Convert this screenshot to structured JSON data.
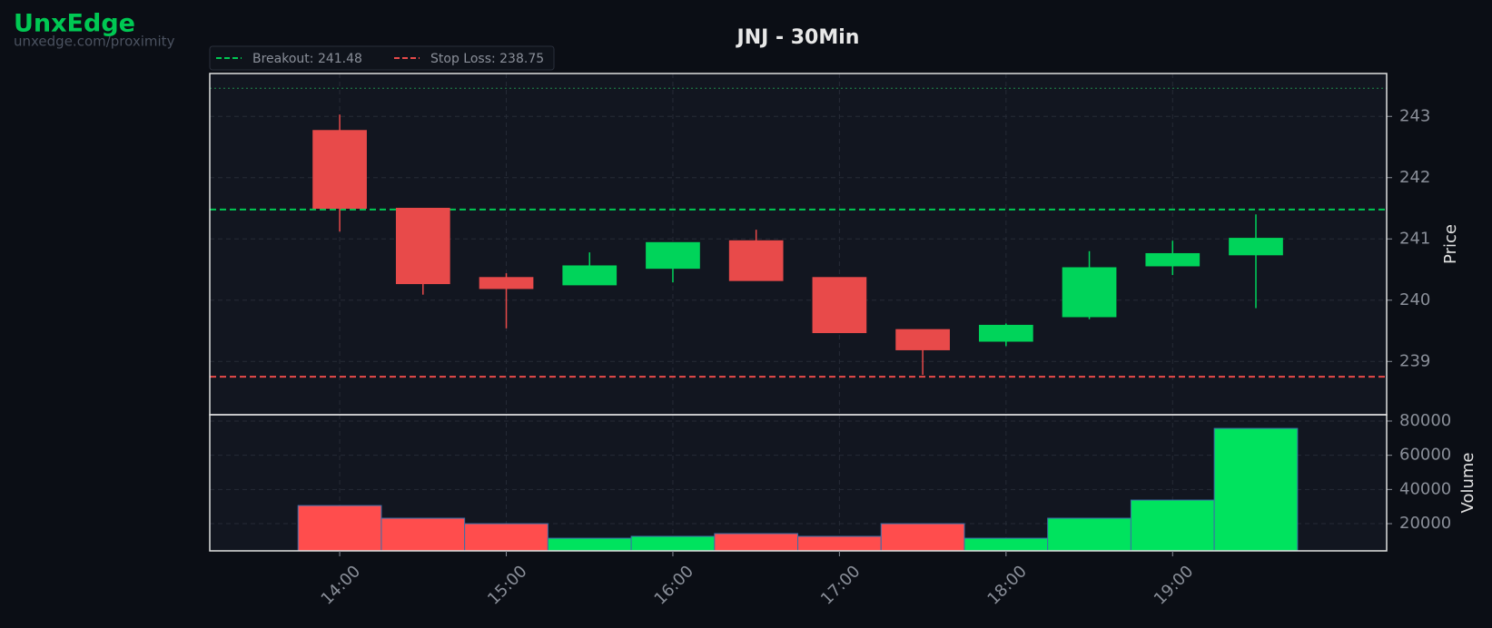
{
  "brand": {
    "name": "UnxEdge",
    "url": "unxedge.com/proximity"
  },
  "chart_data": {
    "type": "candlestick",
    "title": "JNJ - 30Min",
    "categories": [
      "14:00",
      null,
      "15:00",
      null,
      "16:00",
      null,
      "17:00",
      null,
      "18:00",
      null,
      "19:00",
      null
    ],
    "open": [
      242.77,
      241.5,
      240.37,
      240.25,
      240.52,
      240.97,
      240.37,
      239.52,
      239.33,
      239.73,
      240.56,
      240.74
    ],
    "high": [
      243.03,
      241.5,
      240.44,
      240.78,
      240.94,
      241.15,
      240.37,
      239.52,
      239.62,
      240.8,
      240.97,
      241.4
    ],
    "low": [
      241.12,
      240.09,
      239.54,
      240.25,
      240.29,
      240.32,
      239.47,
      238.78,
      239.25,
      239.69,
      240.41,
      239.87
    ],
    "close": [
      241.5,
      240.27,
      240.19,
      240.56,
      240.94,
      240.32,
      239.47,
      239.19,
      239.59,
      240.53,
      240.76,
      241.01
    ],
    "up_color": "#00d45a",
    "down_color": "#e84a4a",
    "xlim": [
      -1.56,
      12.57
    ],
    "ylim": [
      238.13,
      243.7
    ],
    "yticks": [
      239,
      240,
      241,
      242,
      243
    ],
    "ylabel": "Price",
    "grid": true,
    "lines": [
      {
        "name": "Breakout: 241.48",
        "value": 241.48,
        "color": "#00c853"
      },
      {
        "name": "Stop Loss: 238.75",
        "value": 238.75,
        "color": "#e84a4a"
      }
    ],
    "dotted_line": {
      "value": 243.46,
      "color": "#1f8a4c"
    },
    "volume": {
      "values": [
        30600,
        23200,
        20000,
        11500,
        12600,
        14200,
        12600,
        20000,
        11500,
        23200,
        33800,
        75700
      ],
      "ylim": [
        4100,
        83700
      ],
      "yticks": [
        20000,
        40000,
        60000,
        80000
      ],
      "ylabel": "Volume"
    }
  }
}
